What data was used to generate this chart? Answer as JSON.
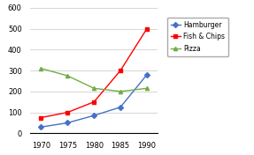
{
  "years": [
    1970,
    1975,
    1980,
    1985,
    1990
  ],
  "hamburger": [
    30,
    50,
    85,
    125,
    280
  ],
  "fish_chips": [
    75,
    100,
    150,
    300,
    500
  ],
  "pizza": [
    310,
    275,
    215,
    200,
    215
  ],
  "colors": {
    "hamburger": "#4472c4",
    "fish_chips": "#ff0000",
    "pizza": "#70ad47"
  },
  "legend_labels": [
    "Hamburger",
    "Fish & Chips",
    "Pizza"
  ],
  "ylim": [
    0,
    600
  ],
  "yticks": [
    0,
    100,
    200,
    300,
    400,
    500,
    600
  ],
  "background_color": "#ffffff"
}
